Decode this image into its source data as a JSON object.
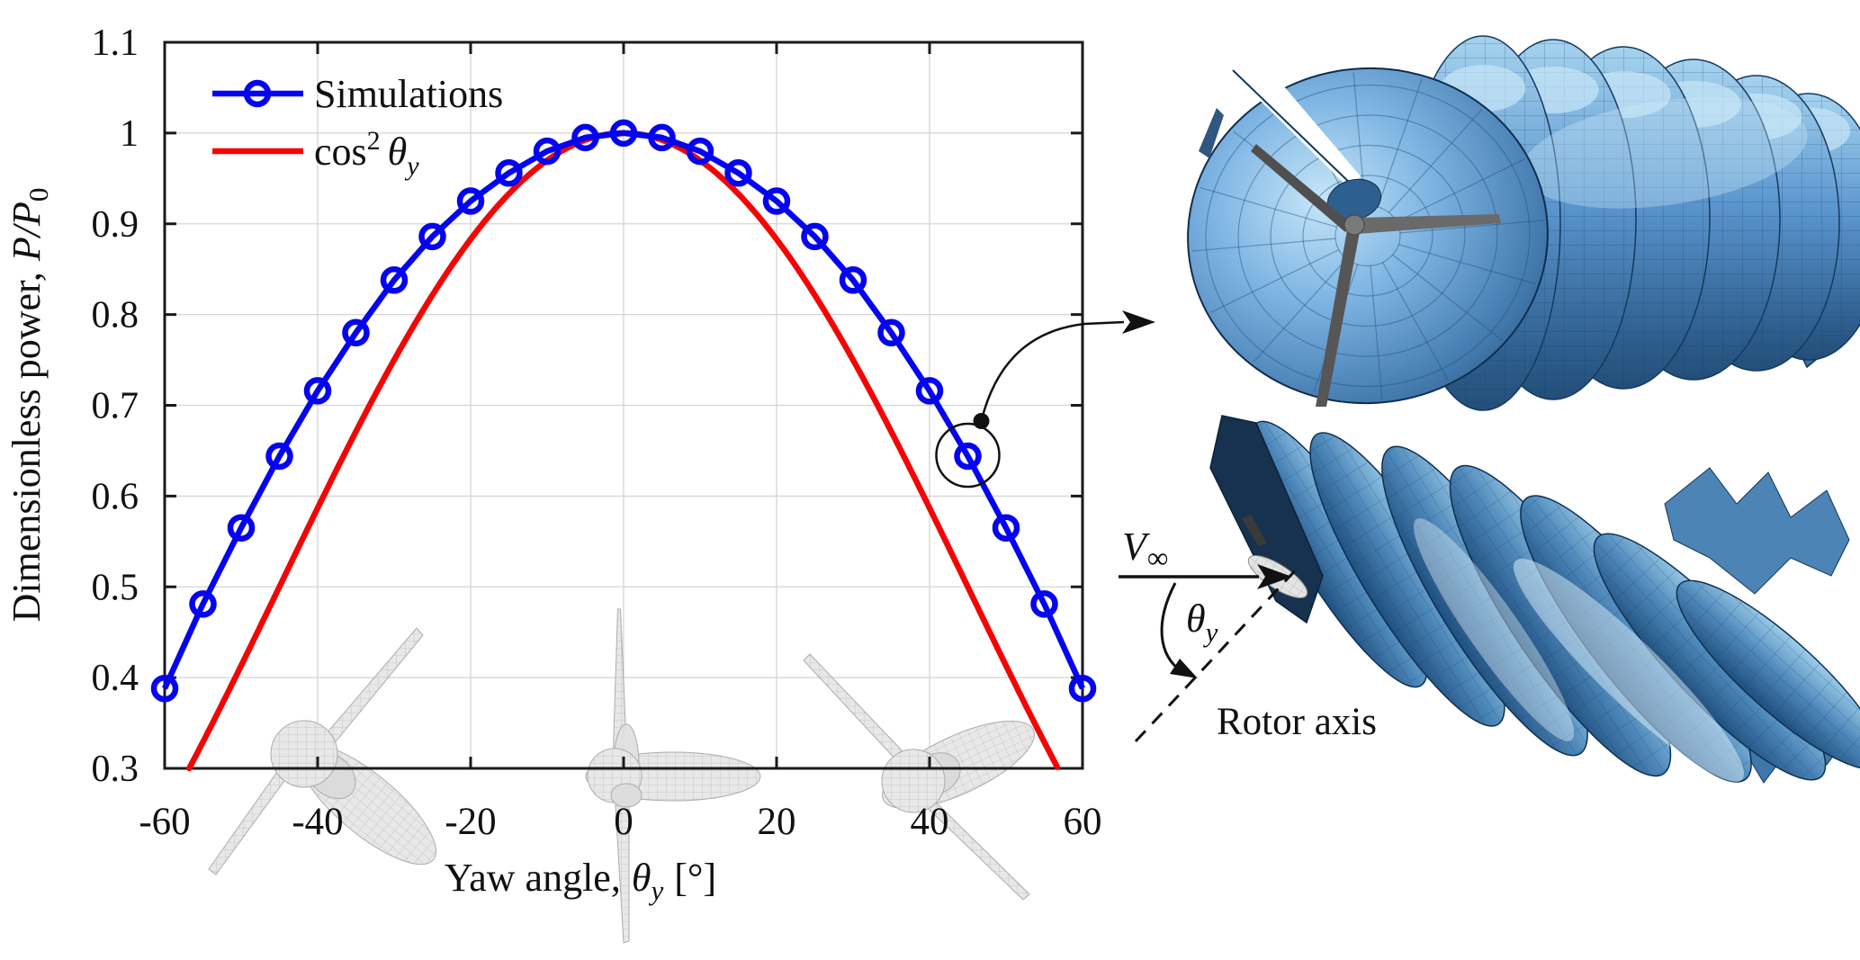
{
  "chart_data": {
    "type": "line",
    "title": "",
    "xlabel": "Yaw angle, θ_y [°]",
    "ylabel": "Dimensionless power, P/P_0",
    "xlim": [
      -60,
      60
    ],
    "ylim": [
      0.3,
      1.1
    ],
    "grid": true,
    "legend_position": "top-left-inside",
    "xticks": [
      -60,
      -40,
      -20,
      0,
      20,
      40,
      60
    ],
    "xtick_labels": [
      "-60",
      "-40",
      "-20",
      "0",
      "20",
      "40",
      "60"
    ],
    "yticks": [
      0.3,
      0.4,
      0.5,
      0.6,
      0.7,
      0.8,
      0.9,
      1,
      1.1
    ],
    "ytick_labels": [
      "0.3",
      "0.4",
      "0.5",
      "0.6",
      "0.7",
      "0.8",
      "0.9",
      "1",
      "1.1"
    ],
    "series": [
      {
        "name": "Simulations",
        "color": "#0404f0",
        "marker": "circle",
        "x": [
          -60,
          -55,
          -50,
          -45,
          -40,
          -35,
          -30,
          -25,
          -20,
          -15,
          -10,
          -5,
          0,
          5,
          10,
          15,
          20,
          25,
          30,
          35,
          40,
          45,
          50,
          55,
          60
        ],
        "y": [
          0.388,
          0.481,
          0.565,
          0.644,
          0.716,
          0.78,
          0.838,
          0.886,
          0.925,
          0.956,
          0.98,
          0.995,
          1.0,
          0.995,
          0.98,
          0.956,
          0.925,
          0.886,
          0.838,
          0.78,
          0.716,
          0.644,
          0.565,
          0.481,
          0.388
        ]
      },
      {
        "name": "cos^2 θ_y",
        "color": "#f50404",
        "formula": "cos^2(theta_y)",
        "x_range": [
          -56.79,
          56.79
        ],
        "clipped_at_y": 0.3
      }
    ],
    "annotation": {
      "highlighted_point": {
        "x": 45,
        "y": 0.645
      }
    }
  },
  "labels": {
    "axis": {
      "xlabel_prefix": "Yaw angle,",
      "theta": "θ",
      "theta_sub": "y",
      "xlabel_unit": "[°]",
      "ylabel_prefix": "Dimensionless power,",
      "ylabel_math": "P/P",
      "ylabel_sub": "0"
    },
    "legend": {
      "simulations": "Simulations",
      "cos": "cos",
      "cos_sup": "2",
      "theta": "θ",
      "theta_sub": "y"
    },
    "inset": {
      "v": "V",
      "v_sub": "∞",
      "theta": "θ",
      "theta_sub": "y",
      "rotor_axis": "Rotor axis"
    }
  },
  "colors": {
    "simulations_blue": "#0404f0",
    "cos2_red": "#f50404",
    "grid_gray": "#d4d4d4",
    "axis_black": "#1a1a1a",
    "wake_blue_mid": "#5b96cf",
    "wake_blue_dark": "#1c3f66",
    "wake_blue_light": "#b7e0f6",
    "turbine_gray": "#dcdcdc"
  }
}
